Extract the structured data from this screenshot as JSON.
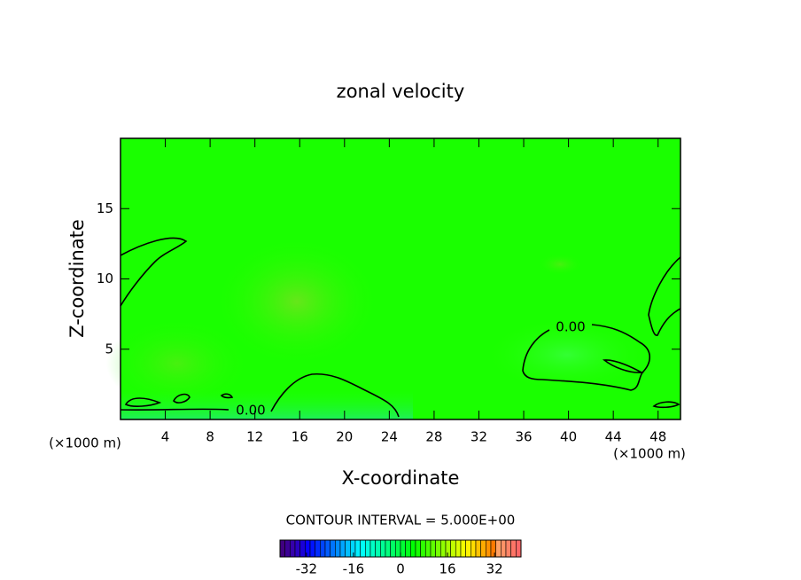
{
  "chart_data": {
    "type": "contour",
    "title": "zonal velocity",
    "xlabel": "X-coordinate",
    "ylabel": "Z-coordinate",
    "x_unit_label": "(×1000 m)",
    "xlim": [
      0,
      50
    ],
    "ylim": [
      0,
      20
    ],
    "xticks": [
      4,
      8,
      12,
      16,
      20,
      24,
      28,
      32,
      36,
      40,
      44,
      48
    ],
    "yticks": [
      5,
      10,
      15
    ],
    "contour_levels": [
      0
    ],
    "value_labels": [
      "0.00"
    ],
    "contour_interval_label": "CONTOUR INTERVAL = 5.000E+00",
    "colorbar": {
      "clim": [
        -41,
        41
      ],
      "ticks": [
        -32,
        -16,
        0,
        16,
        32
      ]
    }
  }
}
